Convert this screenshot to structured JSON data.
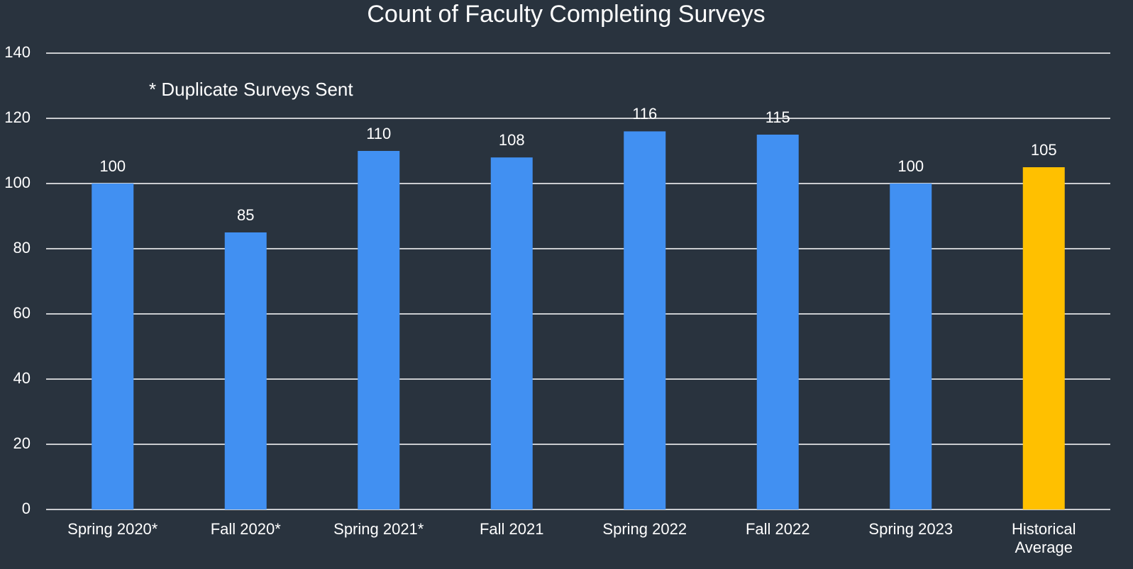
{
  "chart_data": {
    "type": "bar",
    "title": "Count of Faculty Completing Surveys",
    "annotation": "* Duplicate Surveys Sent",
    "categories": [
      "Spring 2020*",
      "Fall 2020*",
      "Spring 2021*",
      "Fall 2021",
      "Spring 2022",
      "Fall 2022",
      "Spring 2023",
      "Historical Average"
    ],
    "values": [
      100,
      85,
      110,
      108,
      116,
      115,
      100,
      105
    ],
    "colors": [
      "#4190f2",
      "#4190f2",
      "#4190f2",
      "#4190f2",
      "#4190f2",
      "#4190f2",
      "#4190f2",
      "#ffc000"
    ],
    "ylim": [
      0,
      140
    ],
    "yticks": [
      0,
      20,
      40,
      60,
      80,
      100,
      120,
      140
    ],
    "grid": true
  }
}
